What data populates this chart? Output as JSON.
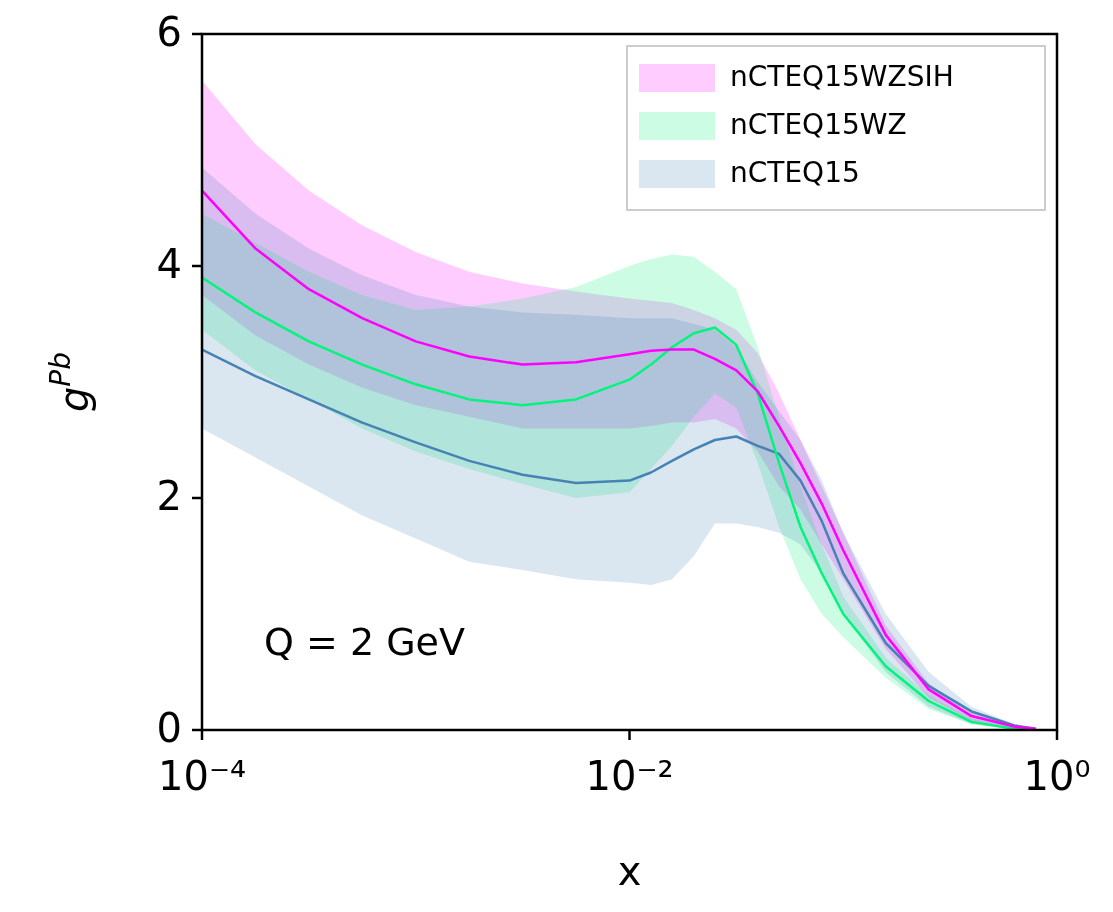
{
  "chart_data": {
    "type": "line",
    "xlabel": "x",
    "ylabel": "g$^{Pb}$",
    "log": "x",
    "grid": false,
    "legend": "top right",
    "marker": "none",
    "line_style": "solid",
    "xlim": [
      0.0001,
      1
    ],
    "ylim": [
      0,
      6
    ],
    "xticks": [
      {
        "value": 0.0001,
        "label": "10⁻⁴"
      },
      {
        "value": 0.01,
        "label": "10⁻²"
      },
      {
        "value": 1,
        "label": "10⁰"
      }
    ],
    "yticks": [
      0,
      2,
      4,
      6
    ],
    "annotations": [
      "Q = 2 GeV"
    ],
    "x": [
      0.0001,
      0.000178,
      0.000316,
      0.000562,
      0.001,
      0.00178,
      0.00316,
      0.00562,
      0.01,
      0.0126,
      0.0158,
      0.02,
      0.0251,
      0.0316,
      0.0398,
      0.0501,
      0.0631,
      0.0794,
      0.1,
      0.158,
      0.251,
      0.398,
      0.631,
      0.794
    ],
    "series": [
      {
        "name": "nCTEQ15WZSIH",
        "color": "#ff00ff",
        "values": [
          4.65,
          4.15,
          3.8,
          3.55,
          3.35,
          3.22,
          3.15,
          3.17,
          3.24,
          3.27,
          3.28,
          3.28,
          3.2,
          3.1,
          2.92,
          2.62,
          2.3,
          1.95,
          1.55,
          0.82,
          0.35,
          0.12,
          0.03,
          0.01
        ],
        "upper": [
          5.6,
          5.05,
          4.65,
          4.35,
          4.12,
          3.95,
          3.85,
          3.78,
          3.72,
          3.7,
          3.68,
          3.62,
          3.55,
          3.45,
          3.25,
          2.9,
          2.5,
          2.1,
          1.7,
          0.9,
          0.4,
          0.15,
          0.04,
          0.01
        ],
        "lower": [
          3.75,
          3.4,
          3.15,
          2.95,
          2.8,
          2.7,
          2.6,
          2.6,
          2.6,
          2.62,
          2.65,
          2.65,
          2.68,
          2.6,
          2.4,
          2.1,
          1.9,
          1.6,
          1.3,
          0.7,
          0.28,
          0.08,
          0.02,
          0
        ]
      },
      {
        "name": "nCTEQ15WZ",
        "color": "#00f57a",
        "values": [
          3.9,
          3.6,
          3.35,
          3.15,
          2.98,
          2.85,
          2.8,
          2.85,
          3.02,
          3.15,
          3.3,
          3.42,
          3.47,
          3.32,
          2.9,
          2.3,
          1.75,
          1.35,
          1.0,
          0.55,
          0.25,
          0.07,
          0.01,
          0
        ],
        "upper": [
          4.45,
          4.2,
          3.95,
          3.75,
          3.62,
          3.65,
          3.72,
          3.82,
          4.0,
          4.06,
          4.1,
          4.08,
          3.95,
          3.8,
          3.3,
          2.7,
          2.1,
          1.6,
          1.15,
          0.62,
          0.3,
          0.1,
          0.02,
          0
        ],
        "lower": [
          3.45,
          3.1,
          2.85,
          2.6,
          2.4,
          2.25,
          2.12,
          2.0,
          2.05,
          2.25,
          2.45,
          2.7,
          2.9,
          2.78,
          2.3,
          1.75,
          1.3,
          1.0,
          0.8,
          0.45,
          0.18,
          0.05,
          0.01,
          0
        ]
      },
      {
        "name": "nCTEQ15",
        "color": "#4682b4",
        "values": [
          3.28,
          3.05,
          2.85,
          2.65,
          2.48,
          2.32,
          2.2,
          2.13,
          2.15,
          2.22,
          2.32,
          2.42,
          2.5,
          2.53,
          2.45,
          2.38,
          2.15,
          1.8,
          1.35,
          0.75,
          0.38,
          0.16,
          0.04,
          0.01
        ],
        "upper": [
          4.85,
          4.45,
          4.15,
          3.92,
          3.75,
          3.65,
          3.6,
          3.58,
          3.55,
          3.55,
          3.55,
          3.5,
          3.45,
          3.3,
          3.0,
          2.75,
          2.5,
          2.15,
          1.7,
          1.0,
          0.5,
          0.2,
          0.05,
          0.01
        ],
        "lower": [
          2.6,
          2.35,
          2.1,
          1.85,
          1.65,
          1.45,
          1.38,
          1.3,
          1.27,
          1.25,
          1.3,
          1.5,
          1.78,
          1.78,
          1.75,
          1.7,
          1.6,
          1.35,
          1.0,
          0.5,
          0.2,
          0.05,
          0.01,
          0
        ]
      }
    ]
  }
}
